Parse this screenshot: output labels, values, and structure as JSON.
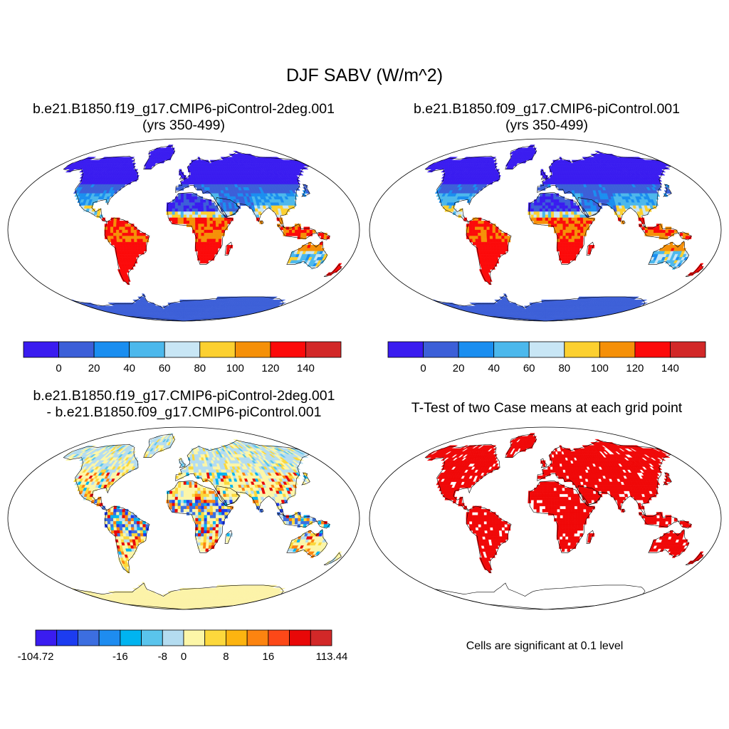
{
  "title": "DJF SABV (W/m^2)",
  "panels": [
    {
      "title_line1": "b.e21.B1850.f19_g17.CMIP6-piControl-2deg.001",
      "title_line2": "(yrs 350-499)"
    },
    {
      "title_line1": "b.e21.B1850.f09_g17.CMIP6-piControl.001",
      "title_line2": "(yrs 350-499)"
    },
    {
      "title_line1": "b.e21.B1850.f19_g17.CMIP6-piControl-2deg.001",
      "title_line2": "- b.e21.B1850.f09_g17.CMIP6-piControl.001"
    },
    {
      "title_line1": "T-Test of two Case means at each grid point",
      "title_line2": ""
    }
  ],
  "colorbar_abs": {
    "colors": [
      "#3a1cf0",
      "#3c5fd8",
      "#1a8ef0",
      "#4cb8ec",
      "#c8e6f5",
      "#fcd030",
      "#f59008",
      "#fc0a0a",
      "#d22828"
    ],
    "labels": [
      "0",
      "20",
      "40",
      "60",
      "80",
      "100",
      "120",
      "140"
    ]
  },
  "colorbar_diff": {
    "colors": [
      "#3a1cf0",
      "#1c3cf0",
      "#3c6ee0",
      "#1e8cf0",
      "#00b4f0",
      "#5ac4ec",
      "#b4dcf0",
      "#fcf6a8",
      "#fcd83c",
      "#fcb410",
      "#fc8410",
      "#fc4818",
      "#e80808",
      "#d22828"
    ],
    "labels": [
      "-104.72",
      "-16",
      "-8",
      "0",
      "8",
      "16",
      "113.44"
    ]
  },
  "ttest_note": "Cells are significant at 0.1 level",
  "colors": {
    "ocean": "#ffffff",
    "antarctica_abs": "#3c5fd8",
    "antarctica_diff": "#fcf3a8",
    "significant": "#f00808"
  }
}
